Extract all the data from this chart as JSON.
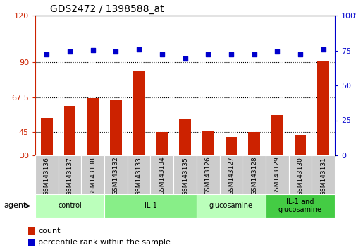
{
  "title": "GDS2472 / 1398588_at",
  "samples": [
    "GSM143136",
    "GSM143137",
    "GSM143138",
    "GSM143132",
    "GSM143133",
    "GSM143134",
    "GSM143135",
    "GSM143126",
    "GSM143127",
    "GSM143128",
    "GSM143129",
    "GSM143130",
    "GSM143131"
  ],
  "counts": [
    54,
    62,
    67,
    66,
    84,
    45,
    53,
    46,
    42,
    45,
    56,
    43,
    91
  ],
  "percentiles": [
    72,
    74,
    75,
    74,
    76,
    72,
    69,
    72,
    72,
    72,
    74,
    72,
    76
  ],
  "groups": [
    {
      "label": "control",
      "start": 0,
      "end": 3,
      "color": "#bbffbb"
    },
    {
      "label": "IL-1",
      "start": 3,
      "end": 7,
      "color": "#88ee88"
    },
    {
      "label": "glucosamine",
      "start": 7,
      "end": 10,
      "color": "#bbffbb"
    },
    {
      "label": "IL-1 and\nglucosamine",
      "start": 10,
      "end": 13,
      "color": "#44cc44"
    }
  ],
  "bar_color": "#cc2200",
  "dot_color": "#0000cc",
  "left_ylim": [
    30,
    120
  ],
  "left_yticks": [
    30,
    45,
    67.5,
    90,
    120
  ],
  "left_ytick_labels": [
    "30",
    "45",
    "67.5",
    "90",
    "120"
  ],
  "right_ylim": [
    0,
    100
  ],
  "right_yticks": [
    0,
    25,
    50,
    75,
    100
  ],
  "right_ytick_labels": [
    "0",
    "25",
    "50",
    "75",
    "100%"
  ],
  "hlines": [
    45,
    67.5,
    90
  ],
  "figsize": [
    5.06,
    3.54
  ],
  "dpi": 100,
  "sample_box_color": "#cccccc",
  "legend_bar_color": "#cc2200",
  "legend_dot_color": "#0000cc"
}
